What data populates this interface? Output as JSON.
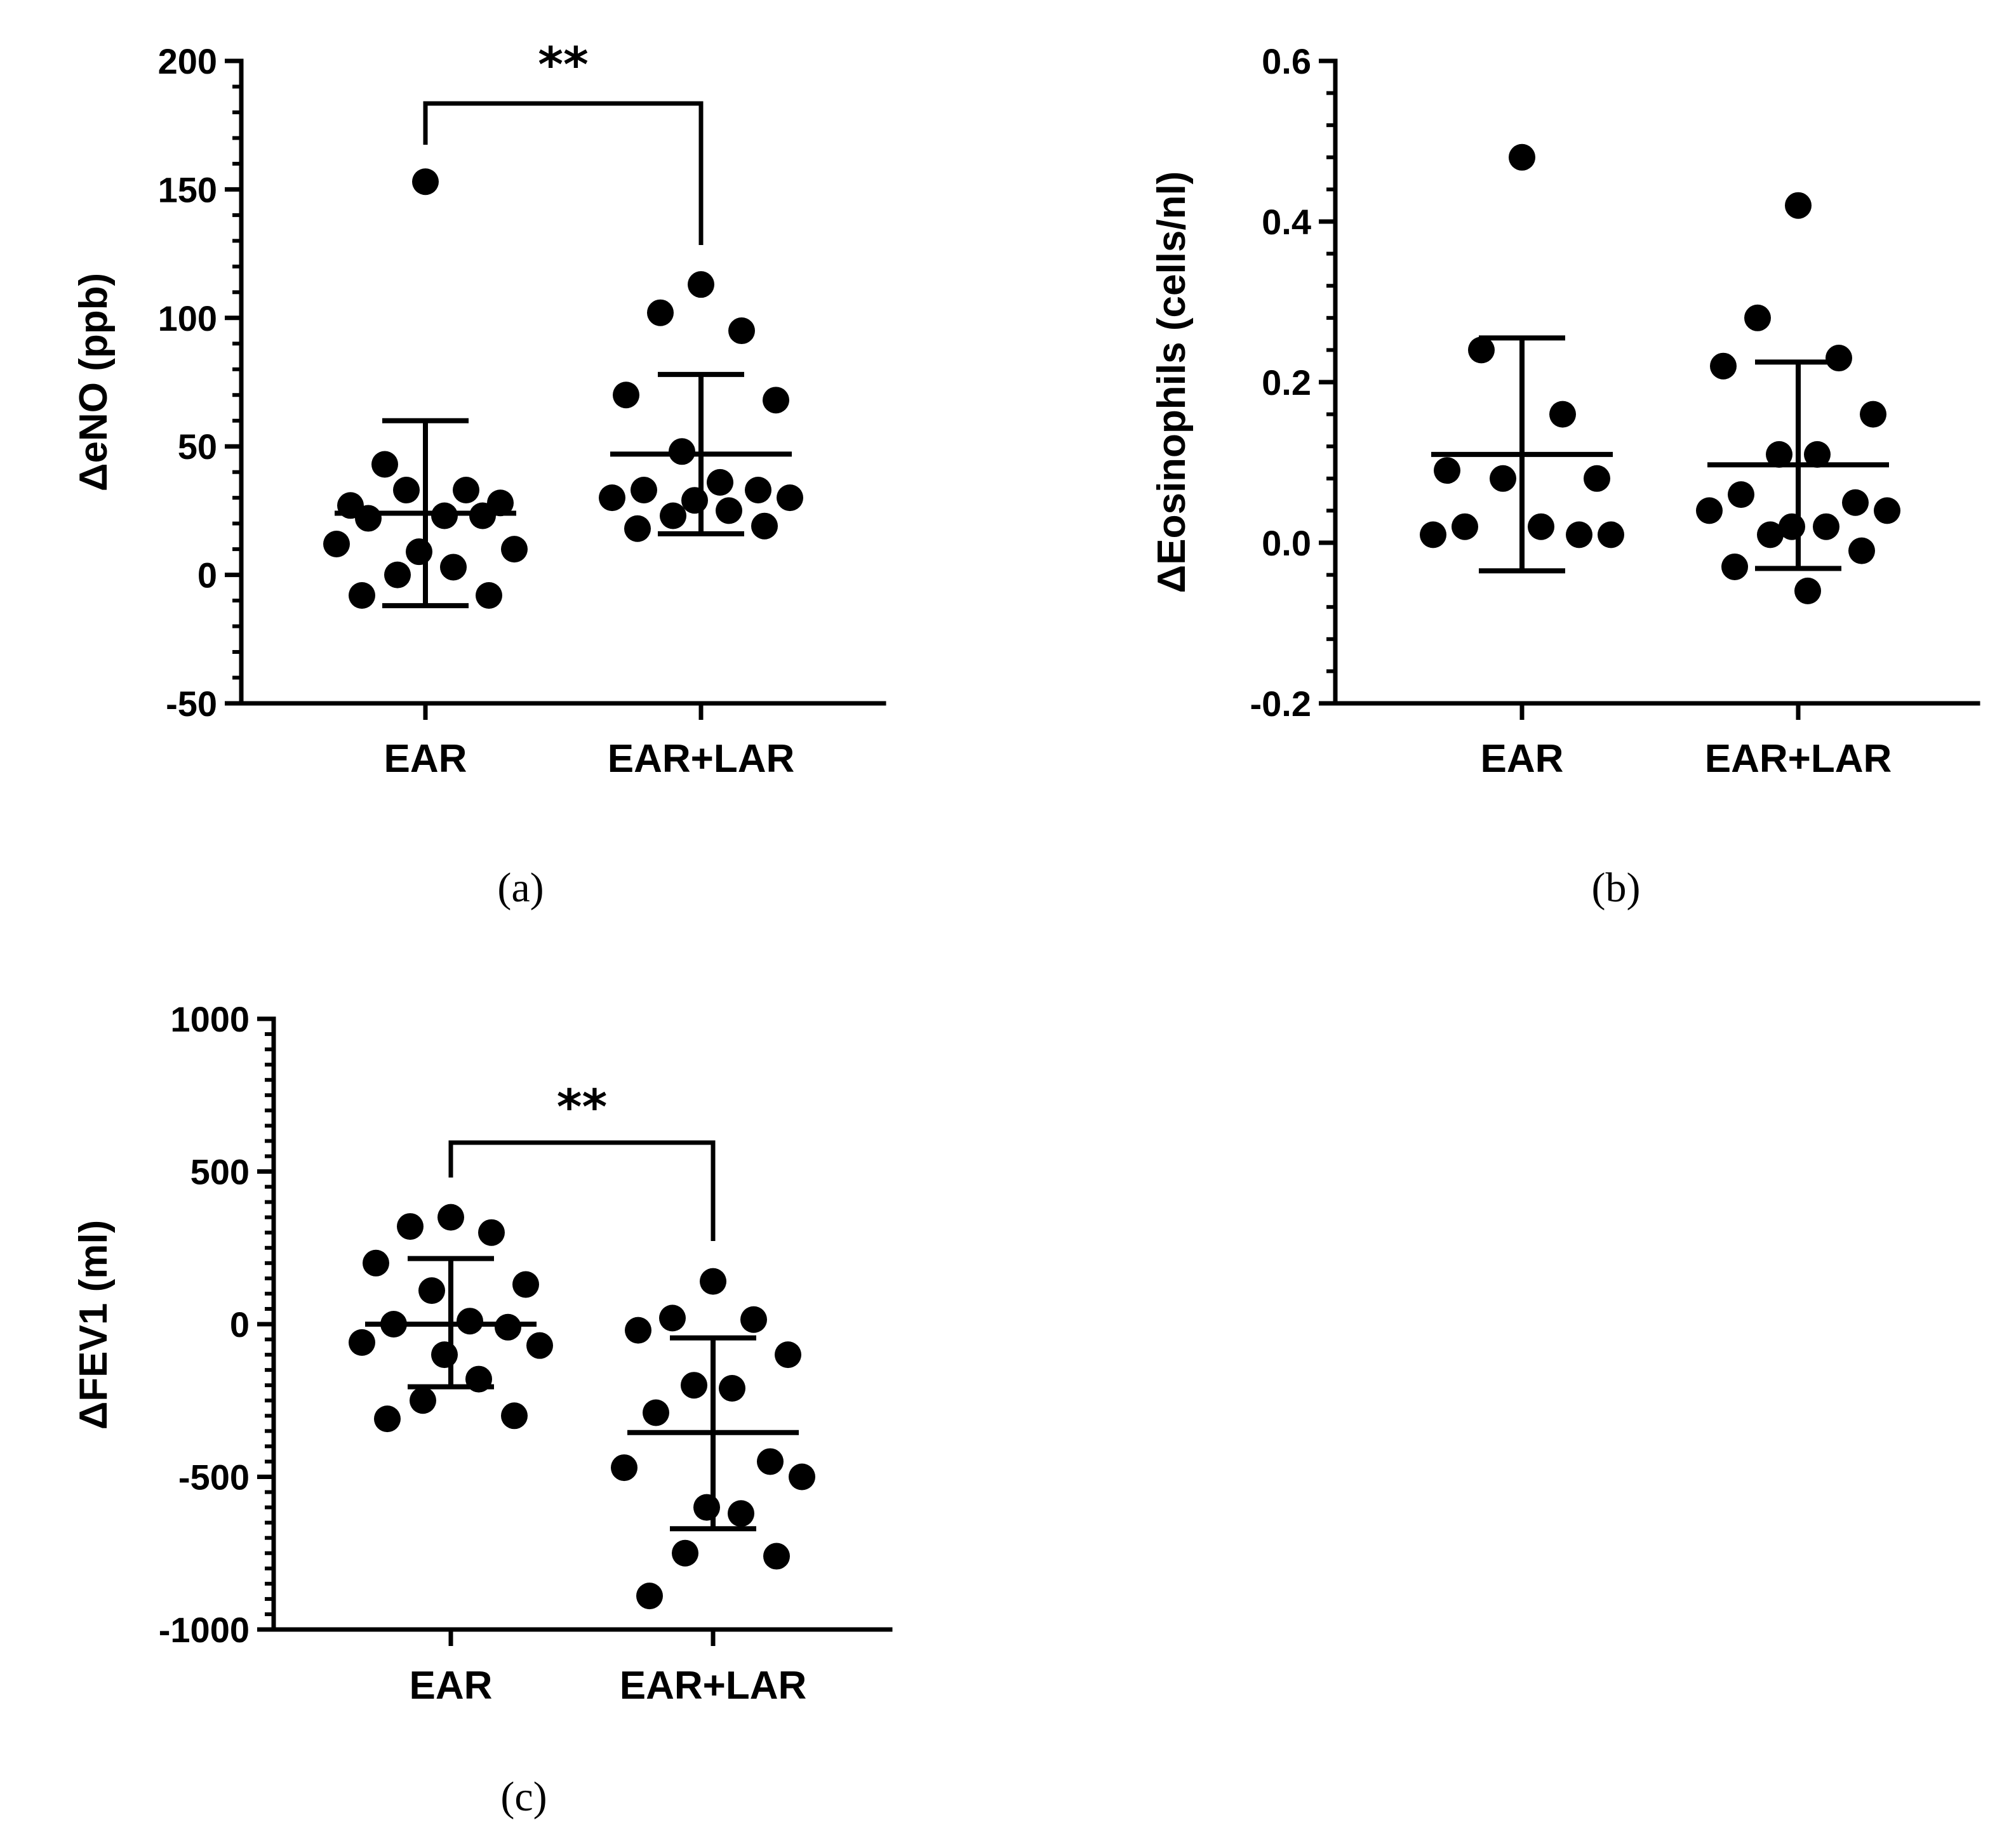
{
  "chart_data": [
    {
      "id": "a",
      "type": "scatter",
      "panel_label": "(a)",
      "ylabel": "ΔeNO (ppb)",
      "ylim": [
        -50,
        200
      ],
      "yticks": [
        -50,
        0,
        50,
        100,
        150,
        200
      ],
      "ytick_labels": [
        "-50",
        "0",
        "50",
        "100",
        "150",
        "200"
      ],
      "minor_ticks_per_major": 4,
      "categories": [
        "EAR",
        "EAR+LAR"
      ],
      "series": [
        {
          "name": "EAR",
          "mean": 24,
          "sd_upper": 60,
          "sd_lower": -12,
          "values": [
            153,
            43,
            33,
            27,
            28,
            33,
            23,
            22,
            23,
            12,
            10,
            9,
            3,
            0,
            -8,
            -8
          ]
        },
        {
          "name": "EAR+LAR",
          "mean": 47,
          "sd_upper": 78,
          "sd_lower": 16,
          "values": [
            113,
            102,
            95,
            70,
            68,
            48,
            36,
            33,
            33,
            30,
            30,
            29,
            25,
            23,
            19,
            18
          ]
        }
      ],
      "significance": {
        "label": "**",
        "between": [
          "EAR",
          "EAR+LAR"
        ]
      }
    },
    {
      "id": "b",
      "type": "scatter",
      "panel_label": "(b)",
      "ylabel": "ΔEosinophils (cells/nl)",
      "ylim": [
        -0.2,
        0.6
      ],
      "yticks": [
        -0.2,
        0.0,
        0.2,
        0.4,
        0.6
      ],
      "ytick_labels": [
        "-0.2",
        "0.0",
        "0.2",
        "0.4",
        "0.6"
      ],
      "minor_ticks_per_major": 4,
      "categories": [
        "EAR",
        "EAR+LAR"
      ],
      "series": [
        {
          "name": "EAR",
          "mean": 0.11,
          "sd_upper": 0.255,
          "sd_lower": -0.035,
          "values": [
            0.48,
            0.24,
            0.16,
            0.09,
            0.08,
            0.08,
            0.02,
            0.02,
            0.01,
            0.01,
            0.01
          ]
        },
        {
          "name": "EAR+LAR",
          "mean": 0.097,
          "sd_upper": 0.225,
          "sd_lower": -0.032,
          "values": [
            0.42,
            0.28,
            0.23,
            0.22,
            0.16,
            0.11,
            0.11,
            0.06,
            0.05,
            0.04,
            0.04,
            0.02,
            0.02,
            0.01,
            -0.01,
            -0.03,
            -0.06
          ]
        }
      ]
    },
    {
      "id": "c",
      "type": "scatter",
      "panel_label": "(c)",
      "ylabel": "ΔFEV1 (ml)",
      "ylim": [
        -1000,
        1000
      ],
      "yticks": [
        -1000,
        -500,
        0,
        500,
        1000
      ],
      "ytick_labels": [
        "-1000",
        "-500",
        "0",
        "500",
        "1000"
      ],
      "minor_ticks_per_major": 9,
      "categories": [
        "EAR",
        "EAR+LAR"
      ],
      "series": [
        {
          "name": "EAR",
          "mean": 0,
          "sd_upper": 215,
          "sd_lower": -205,
          "values": [
            350,
            320,
            300,
            200,
            130,
            110,
            10,
            0,
            -10,
            -60,
            -70,
            -100,
            -180,
            -250,
            -300,
            -310
          ]
        },
        {
          "name": "EAR+LAR",
          "mean": -355,
          "sd_upper": -45,
          "sd_lower": -670,
          "values": [
            140,
            20,
            15,
            -20,
            -100,
            -200,
            -210,
            -290,
            -450,
            -470,
            -500,
            -600,
            -620,
            -750,
            -760,
            -890
          ]
        }
      ],
      "significance": {
        "label": "**",
        "between": [
          "EAR",
          "EAR+LAR"
        ]
      }
    }
  ]
}
